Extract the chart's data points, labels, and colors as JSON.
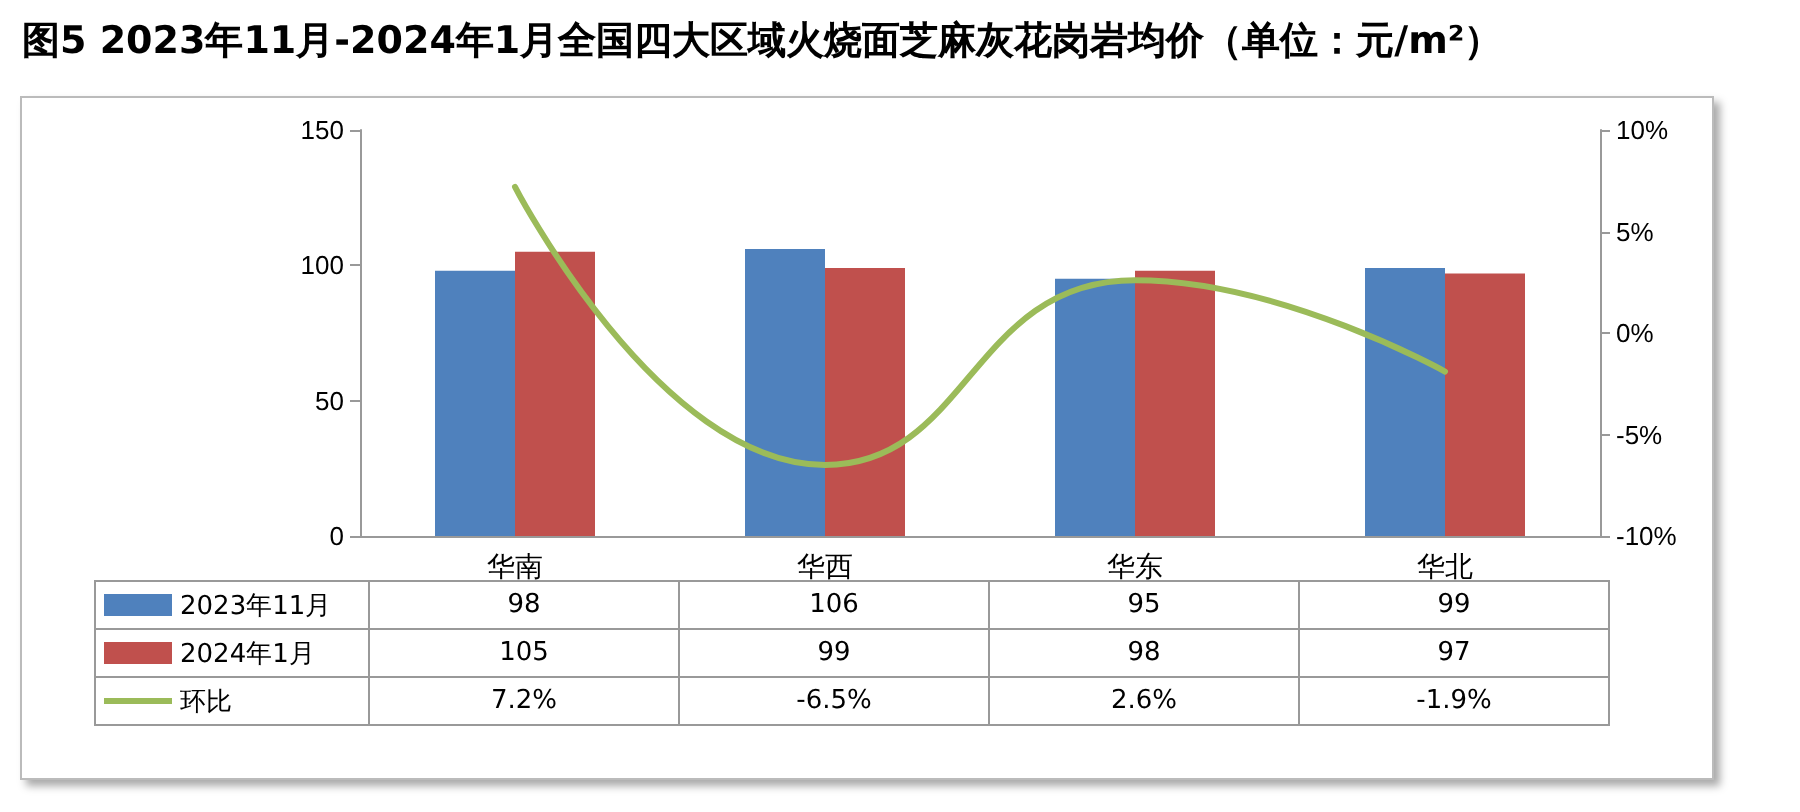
{
  "chart_data": {
    "type": "bar",
    "title": "图5 2023年11月-2024年1月全国四大区域火烧面芝麻灰花岗岩均价（单位：元/m²）",
    "categories": [
      "华南",
      "华西",
      "华东",
      "华北"
    ],
    "series": [
      {
        "name": "2023年11月",
        "color": "#4f81bd",
        "values": [
          98,
          106,
          95,
          99
        ],
        "value_labels": [
          "98",
          "106",
          "95",
          "99"
        ]
      },
      {
        "name": "2024年1月",
        "color": "#c0504d",
        "values": [
          105,
          99,
          98,
          97
        ],
        "value_labels": [
          "105",
          "99",
          "98",
          "97"
        ]
      },
      {
        "name": "环比",
        "type": "line",
        "axis": "y2",
        "color": "#9bbb59",
        "values": [
          7.2,
          -6.5,
          2.6,
          -1.9
        ],
        "value_labels": [
          "7.2%",
          "-6.5%",
          "2.6%",
          "-1.9%"
        ]
      }
    ],
    "ylim": [
      0,
      150
    ],
    "yticks": [
      0,
      50,
      100,
      150
    ],
    "y2lim": [
      -10,
      10
    ],
    "y2ticks": [
      {
        "value": -10,
        "label": "-10%"
      },
      {
        "value": -5,
        "label": "-5%"
      },
      {
        "value": 0,
        "label": "0%"
      },
      {
        "value": 5,
        "label": "5%"
      },
      {
        "value": 10,
        "label": "10%"
      }
    ],
    "grid": false,
    "legend": "bottom left",
    "marker": "none",
    "line_style": "solid"
  }
}
